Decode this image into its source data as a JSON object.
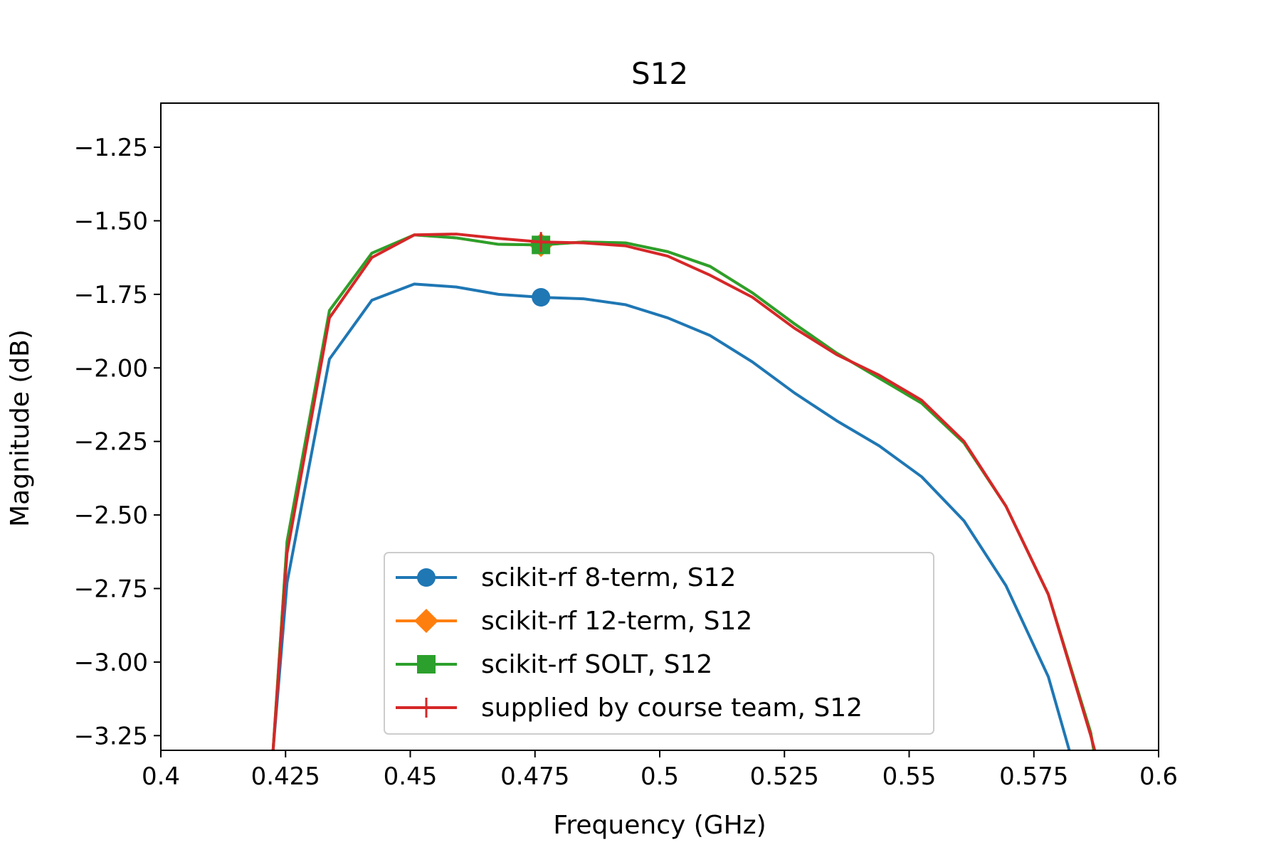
{
  "chart_data": {
    "type": "line",
    "title": "S12",
    "xlabel": "Frequency (GHz)",
    "ylabel": "Magnitude (dB)",
    "xlim": [
      0.4,
      0.6
    ],
    "ylim": [
      -3.3,
      -1.1
    ],
    "x_ticks": [
      {
        "value": 0.4,
        "label": "0.4"
      },
      {
        "value": 0.425,
        "label": "0.425"
      },
      {
        "value": 0.45,
        "label": "0.45"
      },
      {
        "value": 0.475,
        "label": "0.475"
      },
      {
        "value": 0.5,
        "label": "0.5"
      },
      {
        "value": 0.525,
        "label": "0.525"
      },
      {
        "value": 0.55,
        "label": "0.55"
      },
      {
        "value": 0.575,
        "label": "0.575"
      },
      {
        "value": 0.6,
        "label": "0.6"
      }
    ],
    "y_ticks": [
      {
        "value": -1.25,
        "label": "−1.25"
      },
      {
        "value": -1.5,
        "label": "−1.50"
      },
      {
        "value": -1.75,
        "label": "−1.75"
      },
      {
        "value": -2.0,
        "label": "−2.00"
      },
      {
        "value": -2.25,
        "label": "−2.25"
      },
      {
        "value": -2.5,
        "label": "−2.50"
      },
      {
        "value": -2.75,
        "label": "−2.75"
      },
      {
        "value": -3.0,
        "label": "−3.00"
      },
      {
        "value": -3.25,
        "label": "−3.25"
      }
    ],
    "grid": false,
    "legend_position": "lower-center",
    "markevery": [
      7,
      26
    ],
    "series": [
      {
        "name": "scikit-rf 8-term, S12",
        "color": "#1f77b4",
        "marker": "circle",
        "x": [
          0.4225,
          0.4253,
          0.4338,
          0.4423,
          0.4508,
          0.4592,
          0.4677,
          0.4762,
          0.4847,
          0.4931,
          0.5016,
          0.5101,
          0.5186,
          0.527,
          0.5355,
          0.544,
          0.5525,
          0.561,
          0.5694,
          0.5779,
          0.5821
        ],
        "y": [
          -3.3,
          -2.73,
          -1.97,
          -1.77,
          -1.715,
          -1.725,
          -1.75,
          -1.76,
          -1.765,
          -1.785,
          -1.83,
          -1.89,
          -1.98,
          -2.085,
          -2.18,
          -2.265,
          -2.37,
          -2.52,
          -2.74,
          -3.05,
          -3.3
        ]
      },
      {
        "name": "scikit-rf 12-term, S12",
        "color": "#ff7f0e",
        "marker": "diamond",
        "x": [
          0.4225,
          0.4253,
          0.4338,
          0.4423,
          0.4508,
          0.4592,
          0.4677,
          0.4762,
          0.4847,
          0.4931,
          0.5016,
          0.5101,
          0.5186,
          0.527,
          0.5355,
          0.544,
          0.5525,
          0.561,
          0.5694,
          0.5779,
          0.5864,
          0.587
        ],
        "y": [
          -3.3,
          -2.59,
          -1.805,
          -1.61,
          -1.548,
          -1.558,
          -1.58,
          -1.582,
          -1.572,
          -1.575,
          -1.605,
          -1.655,
          -1.745,
          -1.85,
          -1.95,
          -2.035,
          -2.12,
          -2.255,
          -2.47,
          -2.77,
          -3.24,
          -3.3
        ]
      },
      {
        "name": "scikit-rf SOLT, S12",
        "color": "#2ca02c",
        "marker": "square",
        "x": [
          0.4225,
          0.4253,
          0.4338,
          0.4423,
          0.4508,
          0.4592,
          0.4677,
          0.4762,
          0.4847,
          0.4931,
          0.5016,
          0.5101,
          0.5186,
          0.527,
          0.5355,
          0.544,
          0.5525,
          0.561,
          0.5694,
          0.5779,
          0.5864,
          0.587
        ],
        "y": [
          -3.3,
          -2.59,
          -1.805,
          -1.61,
          -1.548,
          -1.558,
          -1.58,
          -1.582,
          -1.572,
          -1.575,
          -1.605,
          -1.655,
          -1.745,
          -1.85,
          -1.95,
          -2.035,
          -2.12,
          -2.255,
          -2.47,
          -2.77,
          -3.24,
          -3.3
        ]
      },
      {
        "name": "supplied by course team, S12",
        "color": "#d62728",
        "marker": "plus",
        "x": [
          0.4225,
          0.4253,
          0.4338,
          0.4423,
          0.4508,
          0.4592,
          0.4677,
          0.4762,
          0.4847,
          0.4931,
          0.5016,
          0.5101,
          0.5186,
          0.527,
          0.5355,
          0.544,
          0.5525,
          0.561,
          0.5694,
          0.5779,
          0.5864,
          0.5872
        ],
        "y": [
          -3.3,
          -2.63,
          -1.83,
          -1.625,
          -1.548,
          -1.545,
          -1.56,
          -1.572,
          -1.575,
          -1.585,
          -1.62,
          -1.685,
          -1.76,
          -1.865,
          -1.955,
          -2.025,
          -2.11,
          -2.25,
          -2.47,
          -2.77,
          -3.25,
          -3.3
        ]
      }
    ]
  }
}
